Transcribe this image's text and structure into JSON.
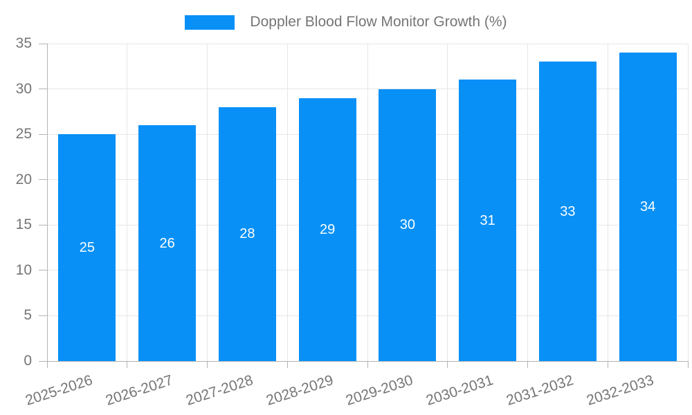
{
  "chart_data": {
    "type": "bar",
    "title": "Doppler Blood Flow Monitor Growth (%)",
    "categories": [
      "2025-2026",
      "2026-2027",
      "2027-2028",
      "2028-2029",
      "2029-2030",
      "2030-2031",
      "2031-2032",
      "2032-2033"
    ],
    "values": [
      25,
      26,
      28,
      29,
      30,
      31,
      33,
      34
    ],
    "xlabel": "",
    "ylabel": "",
    "ylim": [
      0,
      35
    ],
    "yticks": [
      0,
      5,
      10,
      15,
      20,
      25,
      30,
      35
    ],
    "grid": true,
    "legend_position": "top-center",
    "value_labels": "inside-center",
    "x_tick_rotation_deg": -18,
    "colors": {
      "bar": "#0890F7",
      "value_label": "#FFFFFF",
      "axis_text": "#757575",
      "grid": "#E6E6E6",
      "axis_line": "#B3B3B3",
      "background": "#FFFFFF"
    }
  }
}
